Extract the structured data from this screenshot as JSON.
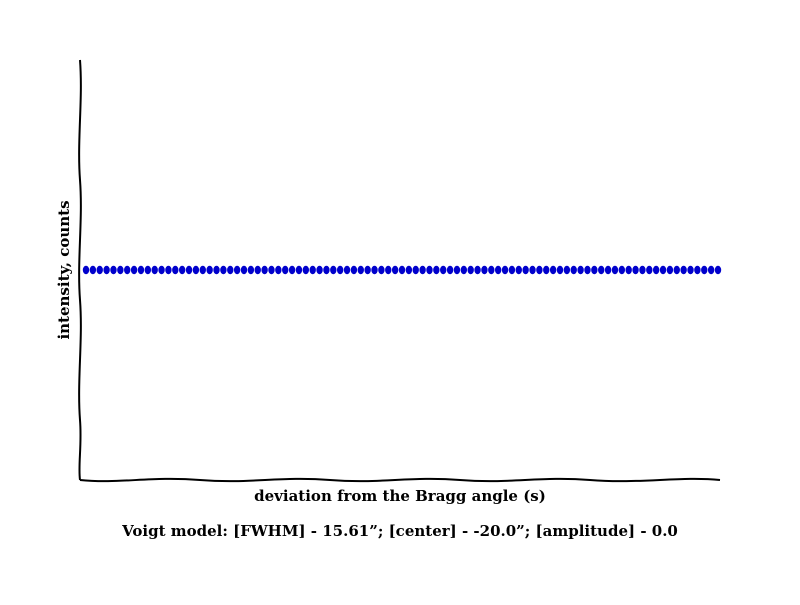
{
  "chart_data": {
    "type": "scatter",
    "xlabel": "deviation from the Bragg angle (s)",
    "ylabel": "intensity, counts",
    "grid": false,
    "legend": "none",
    "marker_color": "#0000cc",
    "series": [
      {
        "values_constant": 0.5,
        "count": 93
      }
    ],
    "caption": "Voigt model:   [FWHM] - 15.61”; [center] - -20.0”; [amplitude] - 0.0"
  }
}
